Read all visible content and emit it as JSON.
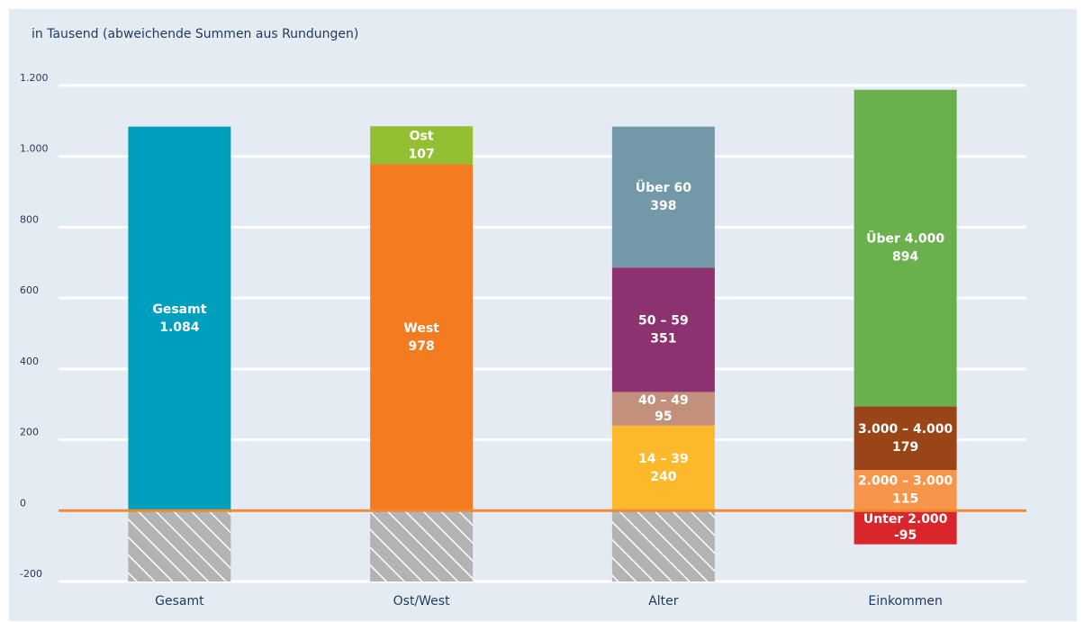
{
  "chart_data": {
    "type": "stacked-bar",
    "title": "in Tausend (abweichende Summen aus Rundungen)",
    "categories": [
      "Gesamt",
      "Ost/West",
      "Alter",
      "Einkommen"
    ],
    "stacks": [
      [
        {
          "name": "Gesamt",
          "value": 1084,
          "value_label": "1.084",
          "color": "#009fbd"
        }
      ],
      [
        {
          "name": "West",
          "value": 978,
          "color": "#f47b20"
        },
        {
          "name": "Ost",
          "value": 107,
          "color": "#95bf32"
        }
      ],
      [
        {
          "name": "14 – 39",
          "value": 240,
          "color": "#fbb92b"
        },
        {
          "name": "40 – 49",
          "value": 95,
          "color": "#c3917b"
        },
        {
          "name": "50 – 59",
          "value": 351,
          "color": "#8c3270"
        },
        {
          "name": "Über 60",
          "value": 398,
          "color": "#7399a9"
        }
      ],
      [
        {
          "name": "Unter 2.000",
          "value": -95,
          "color": "#d9262a"
        },
        {
          "name": "2.000 – 3.000",
          "value": 115,
          "color": "#f7964a"
        },
        {
          "name": "3.000 – 4.000",
          "value": 179,
          "color": "#9a4517"
        },
        {
          "name": "Über 4.000",
          "value": 894,
          "color": "#6ab04c"
        }
      ]
    ],
    "ylim": [
      -200,
      1200
    ],
    "yticks": [
      -200,
      0,
      200,
      400,
      600,
      800,
      {
        "value": 1000,
        "label": "1.000"
      },
      {
        "value": 1200,
        "label": "1.200"
      }
    ],
    "grid": true,
    "zero_line_color": "#f08a35"
  }
}
